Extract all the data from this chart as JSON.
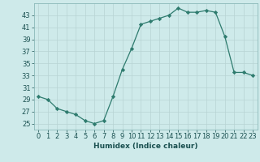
{
  "x": [
    0,
    1,
    2,
    3,
    4,
    5,
    6,
    7,
    8,
    9,
    10,
    11,
    12,
    13,
    14,
    15,
    16,
    17,
    18,
    19,
    20,
    21,
    22,
    23
  ],
  "y": [
    29.5,
    29.0,
    27.5,
    27.0,
    26.5,
    25.5,
    25.0,
    25.5,
    29.5,
    34.0,
    37.5,
    41.5,
    42.0,
    42.5,
    43.0,
    44.2,
    43.5,
    43.5,
    43.8,
    43.5,
    39.5,
    33.5,
    33.5,
    33.0
  ],
  "line_color": "#2e7b6e",
  "marker": "D",
  "marker_size": 2.2,
  "bg_color": "#ceeaea",
  "grid_color": "#b8d4d4",
  "xlabel": "Humidex (Indice chaleur)",
  "xlim": [
    -0.5,
    23.5
  ],
  "ylim": [
    24.0,
    45.0
  ],
  "yticks": [
    25,
    27,
    29,
    31,
    33,
    35,
    37,
    39,
    41,
    43
  ],
  "xticks": [
    0,
    1,
    2,
    3,
    4,
    5,
    6,
    7,
    8,
    9,
    10,
    11,
    12,
    13,
    14,
    15,
    16,
    17,
    18,
    19,
    20,
    21,
    22,
    23
  ],
  "xlabel_fontsize": 6.5,
  "tick_fontsize": 6.0
}
